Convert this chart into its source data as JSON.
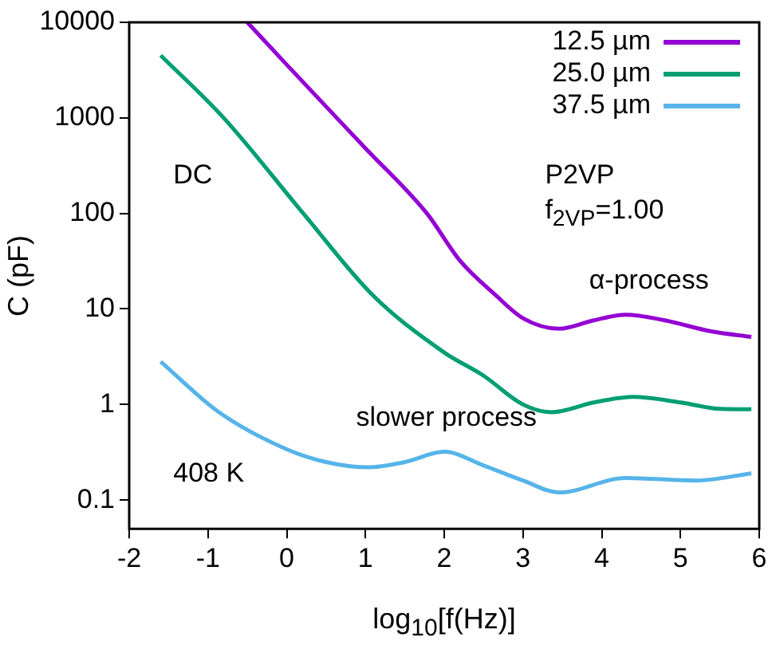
{
  "chart_data": {
    "type": "line",
    "xlabel": "log$_{10}$[f(Hz)]",
    "ylabel": "C (pF)",
    "xlim": [
      -2,
      6
    ],
    "xticks": [
      -2,
      -1,
      0,
      1,
      2,
      3,
      4,
      5,
      6
    ],
    "ylim": [
      0.05,
      10000
    ],
    "yticks": [
      0.1,
      1,
      10,
      100,
      1000,
      10000
    ],
    "log": "y",
    "grid": false,
    "legend": "top right",
    "marker": "none",
    "line_style": "solid",
    "annotations": [
      "DC",
      "P2VP",
      "f$_{2VP}$=1.00",
      "α-process",
      "slower process",
      "408 K"
    ],
    "series": [
      {
        "name": "12.5 µm",
        "color": "#9400d3",
        "x": [
          -0.5,
          0,
          1,
          1.78,
          2.2,
          2.65,
          3.0,
          3.46,
          3.9,
          4.3,
          4.8,
          5.4,
          5.9
        ],
        "values": [
          10000,
          3600,
          480,
          100,
          32,
          14,
          8,
          6.2,
          7.6,
          8.7,
          7.6,
          5.8,
          5.1
        ]
      },
      {
        "name": "25.0 µm",
        "color": "#009e73",
        "x": [
          -1.6,
          -0.8,
          0.21,
          1.09,
          2.0,
          2.5,
          3.0,
          3.36,
          3.9,
          4.4,
          5.0,
          5.5,
          5.9
        ],
        "values": [
          4500,
          1000,
          100,
          14,
          3.5,
          2.0,
          1.0,
          0.83,
          1.05,
          1.2,
          1.05,
          0.9,
          0.89
        ]
      },
      {
        "name": "37.5 µm",
        "color": "#56b4e9",
        "x": [
          -1.6,
          -0.86,
          0,
          0.5,
          1.03,
          1.5,
          2.0,
          2.5,
          3.0,
          3.46,
          4.3,
          5.2,
          5.9
        ],
        "values": [
          2.8,
          0.83,
          0.34,
          0.25,
          0.22,
          0.25,
          0.32,
          0.23,
          0.16,
          0.12,
          0.17,
          0.16,
          0.19
        ]
      }
    ]
  }
}
